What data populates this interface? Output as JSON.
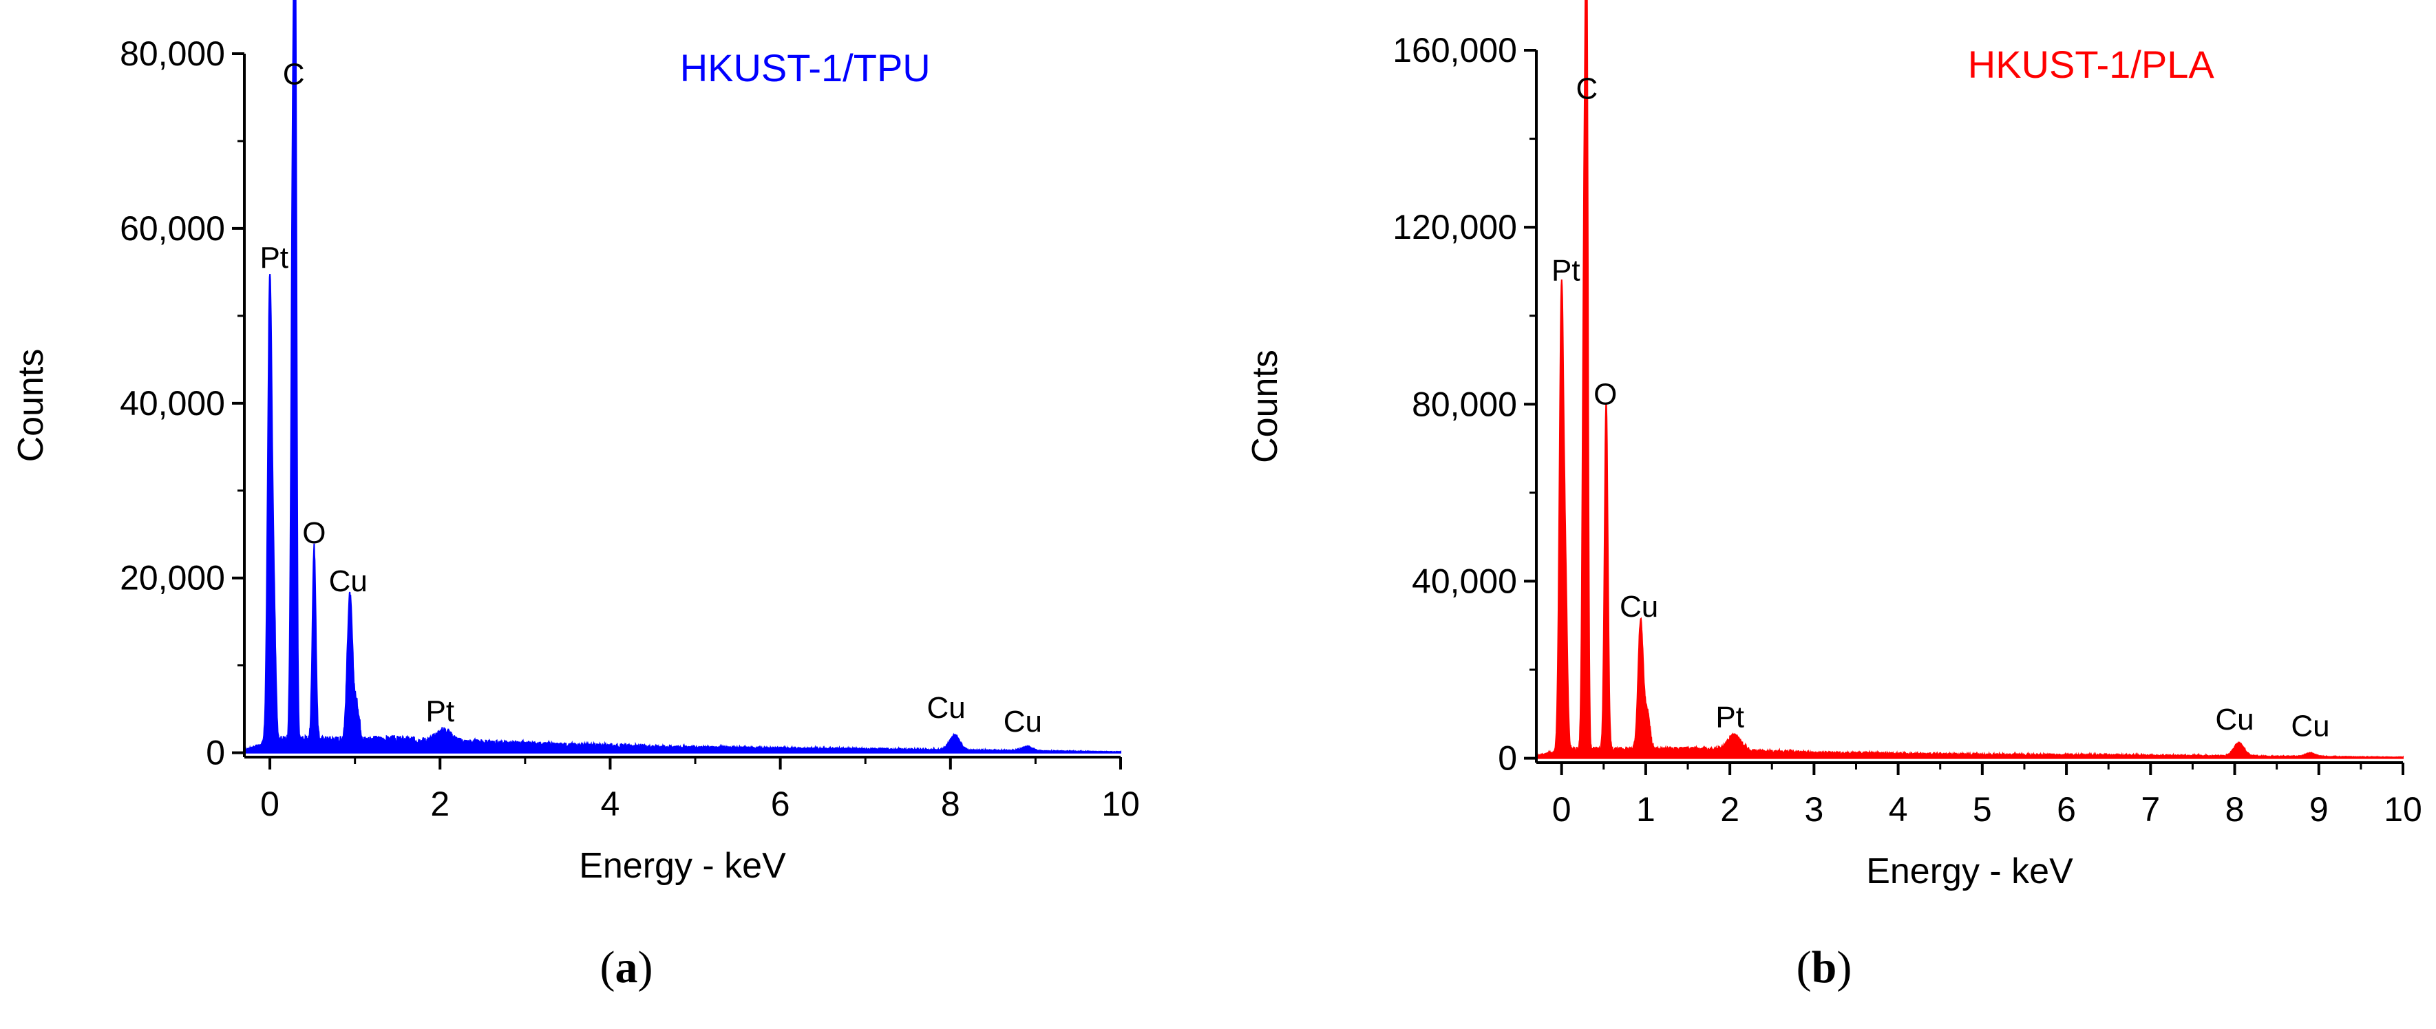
{
  "chart_data": [
    {
      "type": "area",
      "title": "HKUST-1/TPU",
      "xlabel": "Energy - keV",
      "ylabel": "Counts",
      "xlim": [
        -0.3,
        10
      ],
      "ylim": [
        -500,
        80000
      ],
      "xticks": [
        0,
        2,
        4,
        6,
        8,
        10
      ],
      "xtick_labels": [
        "0",
        "2",
        "4",
        "6",
        "8",
        "10"
      ],
      "yticks": [
        0,
        20000,
        40000,
        60000,
        80000
      ],
      "ytick_labels": [
        "0",
        "20,000",
        "40,000",
        "60,000",
        "80,000"
      ],
      "color": "#0000ff",
      "grid": false,
      "series": [
        {
          "peaks": [
            {
              "x": 0.0,
              "y": 53000,
              "w": 0.025
            },
            {
              "x": 0.05,
              "y": 12000,
              "w": 0.02
            },
            {
              "x": 0.27,
              "y": 66000,
              "w": 0.02
            },
            {
              "x": 0.3,
              "y": 73500,
              "w": 0.015
            },
            {
              "x": 0.52,
              "y": 22000,
              "w": 0.02
            },
            {
              "x": 0.94,
              "y": 16500,
              "w": 0.03
            },
            {
              "x": 1.02,
              "y": 4000,
              "w": 0.03
            },
            {
              "x": 2.05,
              "y": 1300,
              "w": 0.08
            },
            {
              "x": 8.05,
              "y": 1700,
              "w": 0.06
            },
            {
              "x": 8.9,
              "y": 500,
              "w": 0.06
            }
          ],
          "baseline": [
            {
              "x": -0.3,
              "y": 300
            },
            {
              "x": 0.1,
              "y": 1500
            },
            {
              "x": 1.5,
              "y": 1500
            },
            {
              "x": 3.0,
              "y": 1000
            },
            {
              "x": 5.0,
              "y": 600
            },
            {
              "x": 7.0,
              "y": 400
            },
            {
              "x": 10.0,
              "y": 100
            }
          ]
        }
      ],
      "annotations": [
        {
          "text": "C",
          "x": 0.28,
          "y": 76500
        },
        {
          "text": "Pt",
          "x": 0.05,
          "y": 55500
        },
        {
          "text": "O",
          "x": 0.52,
          "y": 24000
        },
        {
          "text": "Cu",
          "x": 0.92,
          "y": 18500
        },
        {
          "text": "Pt",
          "x": 2.0,
          "y": 3600
        },
        {
          "text": "Cu",
          "x": 7.95,
          "y": 4000
        },
        {
          "text": "Cu",
          "x": 8.85,
          "y": 2400
        }
      ],
      "caption": "a"
    },
    {
      "type": "area",
      "title": "HKUST-1/PLA",
      "xlabel": "Energy - keV",
      "ylabel": "Counts",
      "xlim": [
        -0.3,
        10
      ],
      "ylim": [
        -1000,
        160000
      ],
      "xticks": [
        0,
        1,
        2,
        3,
        4,
        5,
        6,
        7,
        8,
        9,
        10
      ],
      "xtick_labels": [
        "0",
        "1",
        "2",
        "3",
        "4",
        "5",
        "6",
        "7",
        "8",
        "9",
        "10"
      ],
      "yticks": [
        0,
        40000,
        80000,
        120000,
        160000
      ],
      "ytick_labels": [
        "0",
        "40,000",
        "80,000",
        "120,000",
        "160,000"
      ],
      "color": "#ff0000",
      "grid": false,
      "series": [
        {
          "peaks": [
            {
              "x": 0.0,
              "y": 105000,
              "w": 0.025
            },
            {
              "x": 0.05,
              "y": 30000,
              "w": 0.02
            },
            {
              "x": 0.27,
              "y": 120000,
              "w": 0.02
            },
            {
              "x": 0.3,
              "y": 144000,
              "w": 0.015
            },
            {
              "x": 0.53,
              "y": 78000,
              "w": 0.02
            },
            {
              "x": 0.94,
              "y": 29000,
              "w": 0.03
            },
            {
              "x": 1.02,
              "y": 8000,
              "w": 0.03
            },
            {
              "x": 2.05,
              "y": 3500,
              "w": 0.08
            },
            {
              "x": 8.05,
              "y": 3000,
              "w": 0.06
            },
            {
              "x": 8.9,
              "y": 800,
              "w": 0.06
            }
          ],
          "baseline": [
            {
              "x": -0.3,
              "y": 500
            },
            {
              "x": 0.1,
              "y": 2000
            },
            {
              "x": 1.5,
              "y": 2000
            },
            {
              "x": 3.0,
              "y": 1200
            },
            {
              "x": 5.0,
              "y": 800
            },
            {
              "x": 7.0,
              "y": 600
            },
            {
              "x": 10.0,
              "y": 200
            }
          ]
        }
      ],
      "annotations": [
        {
          "text": "C",
          "x": 0.3,
          "y": 149000
        },
        {
          "text": "Pt",
          "x": 0.05,
          "y": 108000
        },
        {
          "text": "O",
          "x": 0.52,
          "y": 80000
        },
        {
          "text": "Cu",
          "x": 0.92,
          "y": 32000
        },
        {
          "text": "Pt",
          "x": 2.0,
          "y": 7000
        },
        {
          "text": "Cu",
          "x": 8.0,
          "y": 6500
        },
        {
          "text": "Cu",
          "x": 8.9,
          "y": 5000
        }
      ],
      "caption": "b"
    }
  ]
}
